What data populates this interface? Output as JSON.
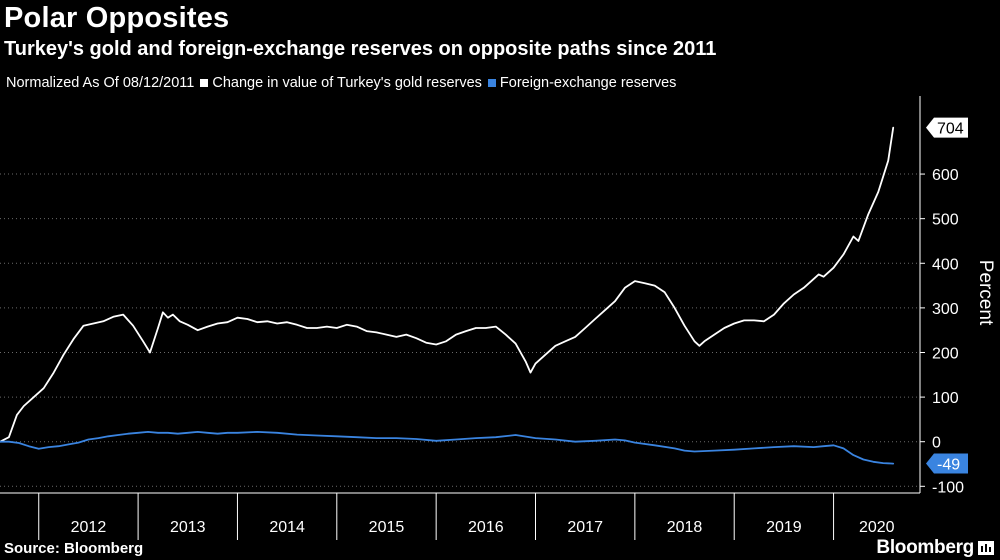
{
  "title": "Polar Opposites",
  "subtitle": "Turkey's gold and foreign-exchange reserves on opposite paths since 2011",
  "legend": {
    "note": "Normalized As Of 08/12/2011",
    "gold_label": "Change in value of Turkey's gold reserves",
    "fx_label": "Foreign-exchange reserves"
  },
  "footer": {
    "source": "Source: Bloomberg",
    "brand": "Bloomberg"
  },
  "colors": {
    "background": "#000000",
    "gold": "#ffffff",
    "fx": "#3a84e0",
    "grid": "#6a6a6a"
  },
  "chart_data": {
    "type": "line",
    "title": "Polar Opposites",
    "ylabel": "Percent",
    "xlabel": "",
    "ylim": [
      -115,
      775
    ],
    "xlim": [
      2011.61,
      2020.87
    ],
    "yticks": [
      -100,
      0,
      100,
      200,
      300,
      400,
      500,
      600
    ],
    "xticks": [
      "2012",
      "2013",
      "2014",
      "2015",
      "2016",
      "2017",
      "2018",
      "2019",
      "2020"
    ],
    "grid": true,
    "series": [
      {
        "name": "Change in value of Turkey's gold reserves",
        "end_label": "704",
        "x": [
          2011.61,
          2011.7,
          2011.78,
          2011.85,
          2011.95,
          2012.05,
          2012.15,
          2012.25,
          2012.35,
          2012.45,
          2012.55,
          2012.65,
          2012.75,
          2012.85,
          2012.95,
          2013.05,
          2013.12,
          2013.2,
          2013.25,
          2013.3,
          2013.35,
          2013.42,
          2013.5,
          2013.6,
          2013.7,
          2013.8,
          2013.9,
          2014.0,
          2014.1,
          2014.2,
          2014.3,
          2014.4,
          2014.5,
          2014.6,
          2014.7,
          2014.8,
          2014.9,
          2015.0,
          2015.1,
          2015.2,
          2015.3,
          2015.4,
          2015.5,
          2015.6,
          2015.7,
          2015.8,
          2015.9,
          2016.0,
          2016.1,
          2016.2,
          2016.3,
          2016.4,
          2016.5,
          2016.6,
          2016.7,
          2016.8,
          2016.9,
          2016.95,
          2017.0,
          2017.1,
          2017.2,
          2017.3,
          2017.4,
          2017.5,
          2017.6,
          2017.7,
          2017.8,
          2017.9,
          2018.0,
          2018.1,
          2018.2,
          2018.3,
          2018.4,
          2018.5,
          2018.6,
          2018.65,
          2018.7,
          2018.8,
          2018.9,
          2019.0,
          2019.1,
          2019.2,
          2019.3,
          2019.4,
          2019.5,
          2019.6,
          2019.7,
          2019.8,
          2019.85,
          2019.9,
          2020.0,
          2020.1,
          2020.2,
          2020.25,
          2020.35,
          2020.45,
          2020.55,
          2020.6
        ],
        "values": [
          0,
          10,
          60,
          80,
          100,
          120,
          155,
          195,
          230,
          260,
          265,
          270,
          280,
          285,
          260,
          225,
          200,
          255,
          290,
          278,
          285,
          270,
          262,
          250,
          258,
          265,
          268,
          278,
          275,
          268,
          270,
          265,
          268,
          262,
          255,
          255,
          258,
          255,
          262,
          258,
          248,
          245,
          240,
          235,
          240,
          232,
          222,
          218,
          225,
          240,
          248,
          255,
          255,
          258,
          240,
          220,
          180,
          155,
          175,
          195,
          215,
          225,
          235,
          255,
          275,
          295,
          315,
          345,
          360,
          355,
          350,
          335,
          300,
          260,
          225,
          215,
          225,
          240,
          255,
          265,
          272,
          272,
          270,
          285,
          310,
          330,
          345,
          365,
          375,
          370,
          390,
          420,
          460,
          450,
          510,
          560,
          630,
          704
        ]
      },
      {
        "name": "Foreign-exchange reserves",
        "end_label": "-49",
        "x": [
          2011.61,
          2011.7,
          2011.8,
          2011.9,
          2012.0,
          2012.1,
          2012.2,
          2012.3,
          2012.4,
          2012.5,
          2012.6,
          2012.7,
          2012.8,
          2012.9,
          2013.0,
          2013.1,
          2013.2,
          2013.3,
          2013.4,
          2013.5,
          2013.6,
          2013.7,
          2013.8,
          2013.9,
          2014.0,
          2014.2,
          2014.4,
          2014.6,
          2014.8,
          2015.0,
          2015.2,
          2015.4,
          2015.6,
          2015.8,
          2016.0,
          2016.2,
          2016.4,
          2016.6,
          2016.8,
          2017.0,
          2017.2,
          2017.4,
          2017.6,
          2017.8,
          2017.9,
          2018.0,
          2018.2,
          2018.4,
          2018.5,
          2018.6,
          2018.8,
          2019.0,
          2019.2,
          2019.4,
          2019.6,
          2019.8,
          2019.9,
          2020.0,
          2020.1,
          2020.2,
          2020.3,
          2020.4,
          2020.5,
          2020.6
        ],
        "values": [
          0,
          0,
          -3,
          -10,
          -16,
          -12,
          -10,
          -6,
          -2,
          5,
          8,
          12,
          15,
          18,
          20,
          22,
          20,
          20,
          18,
          20,
          22,
          20,
          18,
          20,
          20,
          22,
          20,
          16,
          14,
          12,
          10,
          8,
          8,
          6,
          2,
          5,
          8,
          10,
          15,
          8,
          5,
          0,
          2,
          5,
          3,
          -2,
          -8,
          -15,
          -20,
          -22,
          -20,
          -18,
          -15,
          -12,
          -10,
          -12,
          -10,
          -8,
          -15,
          -30,
          -40,
          -45,
          -48,
          -49
        ]
      }
    ]
  }
}
